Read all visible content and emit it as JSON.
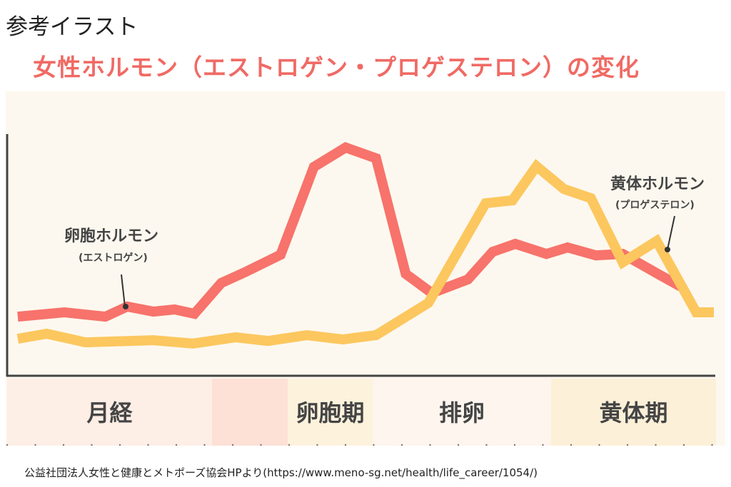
{
  "heading": "参考イラスト",
  "title": "女性ホルモン（エストロゲン・プロゲステロン）の変化",
  "source": "公益社団法人女性と健康とメトポーズ協会HPより(https://www.meno-sg.net/health/life_career/1054/)",
  "chart_data": {
    "type": "line",
    "xlim": [
      0,
      100
    ],
    "ylim": [
      0,
      100
    ],
    "grid": false,
    "axis_ticks": false,
    "phases": [
      {
        "label": "月経",
        "color": "#fdeee6"
      },
      {
        "label": "",
        "color": "#fde0d6"
      },
      {
        "label": "卵胞期",
        "color": "#fdf2dc"
      },
      {
        "label": "排卵",
        "color": "#fef5ee"
      },
      {
        "label": "黄体期",
        "color": "#fdf0d8"
      }
    ],
    "series": [
      {
        "name": "卵胞ホルモン",
        "subname": "(エストロゲン)",
        "color": "#f7736b",
        "points": [
          [
            1.5,
            24.6
          ],
          [
            8.1,
            26.4
          ],
          [
            13.9,
            24.6
          ],
          [
            17,
            28.8
          ],
          [
            20.7,
            26.7
          ],
          [
            23.7,
            27.6
          ],
          [
            26.5,
            25.8
          ],
          [
            30.3,
            38.6
          ],
          [
            33.8,
            43.3
          ],
          [
            38.7,
            50.4
          ],
          [
            43.4,
            86.9
          ],
          [
            47.9,
            95
          ],
          [
            52.2,
            90.5
          ],
          [
            56.4,
            42.4
          ],
          [
            60.1,
            34.4
          ],
          [
            65.2,
            40.1
          ],
          [
            68.7,
            51.6
          ],
          [
            71.9,
            54.9
          ],
          [
            76.3,
            50.7
          ],
          [
            79.3,
            53.4
          ],
          [
            83.3,
            50.1
          ],
          [
            87.1,
            50.7
          ],
          [
            91.9,
            42.7
          ],
          [
            95.5,
            36.8
          ]
        ]
      },
      {
        "name": "黄体ホルモン",
        "subname": "(プロゲステロン)",
        "color": "#fcc75e",
        "points": [
          [
            1.5,
            15.4
          ],
          [
            5.6,
            17.5
          ],
          [
            11.1,
            13.9
          ],
          [
            20.7,
            14.8
          ],
          [
            26.3,
            13.4
          ],
          [
            32.3,
            16
          ],
          [
            36.9,
            14.5
          ],
          [
            42.4,
            16.9
          ],
          [
            47.5,
            15.1
          ],
          [
            52.2,
            16.9
          ],
          [
            59.6,
            30.3
          ],
          [
            67.7,
            71.8
          ],
          [
            71.5,
            73
          ],
          [
            74.9,
            87.2
          ],
          [
            78.8,
            77.7
          ],
          [
            82.6,
            73.9
          ],
          [
            87.1,
            47.2
          ],
          [
            91.9,
            56.1
          ],
          [
            97.5,
            26.4
          ],
          [
            100,
            26.4
          ]
        ]
      }
    ]
  }
}
